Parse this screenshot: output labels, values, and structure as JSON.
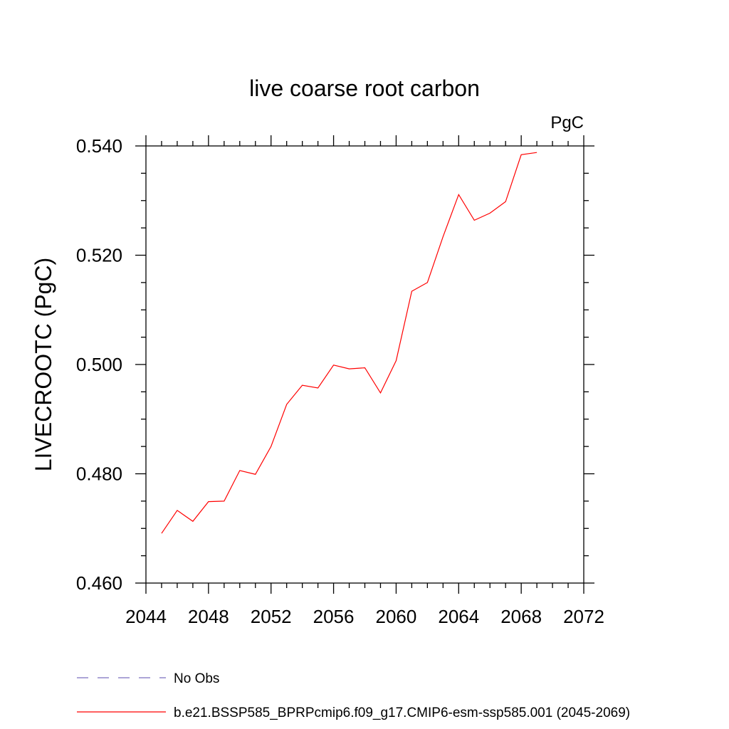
{
  "chart_data": {
    "type": "line",
    "title": "live coarse root carbon",
    "units": "PgC",
    "ylabel": "LIVECROOTC  (PgC)",
    "xlabel": "",
    "xlim": [
      2044,
      2072
    ],
    "ylim": [
      0.46,
      0.54
    ],
    "xticks": [
      2044,
      2048,
      2052,
      2056,
      2060,
      2064,
      2068,
      2072
    ],
    "xtick_labels": [
      "2044",
      "2048",
      "2052",
      "2056",
      "2060",
      "2064",
      "2068",
      "2072"
    ],
    "yticks": [
      0.46,
      0.48,
      0.5,
      0.52,
      0.54
    ],
    "ytick_labels": [
      "0.460",
      "0.480",
      "0.500",
      "0.520",
      "0.540"
    ],
    "grid": false,
    "legend_position": "bottom",
    "series": [
      {
        "name": "b.e21.BSSP585_BPRPcmip6.f09_g17.CMIP6-esm-ssp585.001 (2045-2069)",
        "color": "#ff0000",
        "style": "solid",
        "x": [
          2045,
          2046,
          2047,
          2048,
          2049,
          2050,
          2051,
          2052,
          2053,
          2054,
          2055,
          2056,
          2057,
          2058,
          2059,
          2060,
          2061,
          2062,
          2063,
          2064,
          2065,
          2066,
          2067,
          2068,
          2069
        ],
        "y": [
          0.4691,
          0.4733,
          0.4713,
          0.4749,
          0.475,
          0.4806,
          0.4799,
          0.485,
          0.4927,
          0.4962,
          0.4957,
          0.4999,
          0.4992,
          0.4994,
          0.4948,
          0.5007,
          0.5134,
          0.515,
          0.5234,
          0.5311,
          0.5264,
          0.5277,
          0.5298,
          0.5384,
          0.5388
        ]
      }
    ],
    "legend": [
      {
        "label": "No Obs",
        "color": "#7a6fbf",
        "style": "dashed"
      },
      {
        "label": "b.e21.BSSP585_BPRPcmip6.f09_g17.CMIP6-esm-ssp585.001 (2045-2069)",
        "color": "#ff0000",
        "style": "solid"
      }
    ]
  }
}
